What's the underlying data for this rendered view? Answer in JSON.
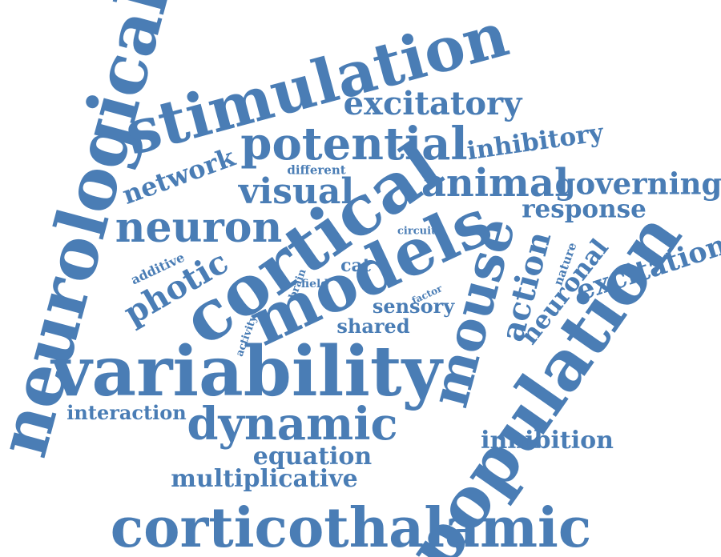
{
  "cloud": {
    "color": "#4a7db5",
    "words": [
      {
        "text": "neurological",
        "weight": 10
      },
      {
        "text": "stimulation",
        "weight": 9
      },
      {
        "text": "excitatory",
        "weight": 5
      },
      {
        "text": "potential",
        "weight": 7
      },
      {
        "text": "inhibitory",
        "weight": 4
      },
      {
        "text": "network",
        "weight": 4
      },
      {
        "text": "different",
        "weight": 2
      },
      {
        "text": "visual",
        "weight": 5
      },
      {
        "text": "animal",
        "weight": 6
      },
      {
        "text": "governing",
        "weight": 5
      },
      {
        "text": "response",
        "weight": 4
      },
      {
        "text": "neuron",
        "weight": 6
      },
      {
        "text": "cortical",
        "weight": 10
      },
      {
        "text": "circuit",
        "weight": 2
      },
      {
        "text": "additive",
        "weight": 2
      },
      {
        "text": "photic",
        "weight": 5
      },
      {
        "text": "cat",
        "weight": 3
      },
      {
        "text": "brain",
        "weight": 2
      },
      {
        "text": "field",
        "weight": 2
      },
      {
        "text": "models",
        "weight": 9
      },
      {
        "text": "mouse",
        "weight": 8
      },
      {
        "text": "action",
        "weight": 5
      },
      {
        "text": "nature",
        "weight": 2
      },
      {
        "text": "neuronal",
        "weight": 4
      },
      {
        "text": "excitation",
        "weight": 5
      },
      {
        "text": "factor",
        "weight": 2
      },
      {
        "text": "sensory",
        "weight": 3
      },
      {
        "text": "activity",
        "weight": 2
      },
      {
        "text": "shared",
        "weight": 3
      },
      {
        "text": "variability",
        "weight": 10
      },
      {
        "text": "population",
        "weight": 10
      },
      {
        "text": "interaction",
        "weight": 3
      },
      {
        "text": "dynamic",
        "weight": 7
      },
      {
        "text": "inhibition",
        "weight": 4
      },
      {
        "text": "equation",
        "weight": 4
      },
      {
        "text": "multiplicative",
        "weight": 4
      },
      {
        "text": "corticothalamic",
        "weight": 9
      }
    ]
  }
}
